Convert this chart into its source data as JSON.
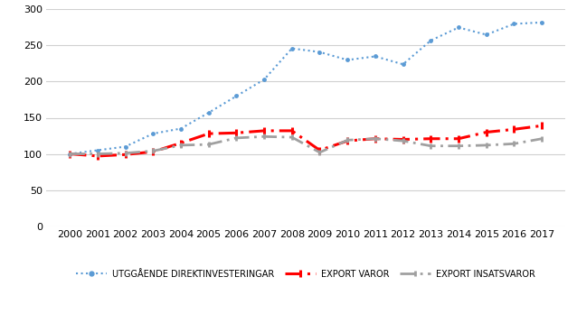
{
  "years": [
    2000,
    2001,
    2002,
    2003,
    2004,
    2005,
    2006,
    2007,
    2008,
    2009,
    2010,
    2011,
    2012,
    2013,
    2014,
    2015,
    2016,
    2017
  ],
  "direktinvesteringar": [
    100,
    105,
    110,
    128,
    135,
    157,
    180,
    203,
    246,
    241,
    230,
    235,
    224,
    257,
    275,
    265,
    280,
    282
  ],
  "export_varor": [
    100,
    97,
    99,
    103,
    115,
    128,
    129,
    132,
    132,
    105,
    118,
    121,
    120,
    121,
    121,
    130,
    134,
    139
  ],
  "export_insatsvaror": [
    100,
    100,
    101,
    104,
    112,
    113,
    122,
    124,
    123,
    102,
    119,
    121,
    118,
    111,
    111,
    112,
    114,
    121
  ],
  "direktinvesteringar_color": "#5B9BD5",
  "export_varor_color": "#FF0000",
  "export_insatsvaror_color": "#A0A0A0",
  "ylim": [
    0,
    300
  ],
  "yticks": [
    0,
    50,
    100,
    150,
    200,
    250,
    300
  ],
  "legend_labels": [
    "UTGGÅENDE DIREKTINVESTERINGAR",
    "EXPORT VAROR",
    "EXPORT INSATSVAROR"
  ],
  "grid_color": "#D0D0D0",
  "background_color": "#FFFFFF",
  "tick_fontsize": 8,
  "legend_fontsize": 7
}
